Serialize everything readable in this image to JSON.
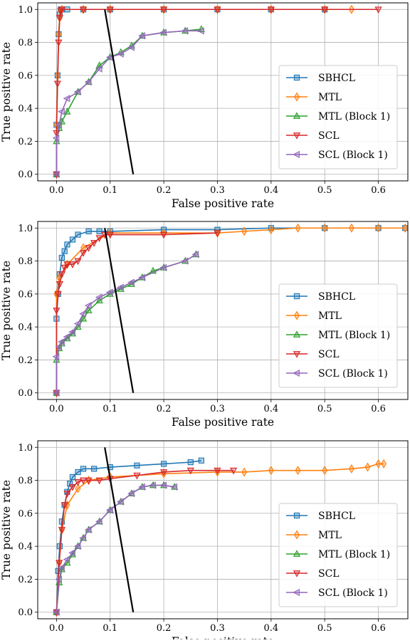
{
  "colors": {
    "sbhcl": "#1f77b4",
    "mtl": "#ff7f0e",
    "mtl_block1": "#2ca02c",
    "scl": "#d62728",
    "scl_block1": "#9467bd",
    "grid": "#b0b0b0",
    "overlay_line": "#000000"
  },
  "chart_data": [
    {
      "type": "line",
      "xlabel": "False positive rate",
      "ylabel": "True positive rate",
      "xlim": [
        -0.035,
        0.655
      ],
      "ylim": [
        -0.04,
        1.04
      ],
      "xticks": [
        "0.0",
        "0.1",
        "0.2",
        "0.3",
        "0.4",
        "0.5",
        "0.6"
      ],
      "yticks": [
        "0.0",
        "0.2",
        "0.4",
        "0.6",
        "0.8",
        "1.0"
      ],
      "grid": true,
      "legend_position": "lower-right",
      "series": [
        {
          "name": "SBHCL",
          "marker": "square",
          "x": [
            0,
            0,
            0.002,
            0.004,
            0.006,
            0.008,
            0.01,
            0.02,
            0.05,
            0.1,
            0.2,
            0.3,
            0.4,
            0.5
          ],
          "y": [
            0,
            0.3,
            0.6,
            0.85,
            0.97,
            1.0,
            1.0,
            1.0,
            1.0,
            1.0,
            1.0,
            1.0,
            1.0,
            1.0
          ]
        },
        {
          "name": "MTL",
          "marker": "diamond",
          "x": [
            0,
            0,
            0.002,
            0.004,
            0.006,
            0.008,
            0.01,
            0.05,
            0.1,
            0.2,
            0.3,
            0.4,
            0.5,
            0.55
          ],
          "y": [
            0,
            0.3,
            0.6,
            0.85,
            0.95,
            0.99,
            1.0,
            1.0,
            1.0,
            1.0,
            1.0,
            1.0,
            1.0,
            1.0
          ]
        },
        {
          "name": "MTL (Block 1)",
          "marker": "triangle-up",
          "x": [
            0,
            0,
            0.005,
            0.01,
            0.02,
            0.04,
            0.06,
            0.08,
            0.1,
            0.12,
            0.14,
            0.16,
            0.2,
            0.24,
            0.27
          ],
          "y": [
            0,
            0.2,
            0.28,
            0.32,
            0.38,
            0.5,
            0.56,
            0.66,
            0.71,
            0.74,
            0.78,
            0.84,
            0.86,
            0.87,
            0.88
          ]
        },
        {
          "name": "SCL",
          "marker": "triangle-down",
          "x": [
            0,
            0,
            0.002,
            0.004,
            0.006,
            0.008,
            0.01,
            0.05,
            0.1,
            0.2,
            0.3,
            0.4,
            0.5,
            0.6
          ],
          "y": [
            0,
            0.25,
            0.55,
            0.8,
            0.95,
            0.99,
            1.0,
            1.0,
            1.0,
            1.0,
            1.0,
            1.0,
            1.0,
            1.0
          ]
        },
        {
          "name": "SCL (Block 1)",
          "marker": "triangle-left",
          "x": [
            0,
            0,
            0.005,
            0.01,
            0.02,
            0.04,
            0.06,
            0.08,
            0.1,
            0.12,
            0.14,
            0.16,
            0.2,
            0.24,
            0.27
          ],
          "y": [
            0,
            0.22,
            0.3,
            0.38,
            0.46,
            0.5,
            0.56,
            0.64,
            0.71,
            0.73,
            0.77,
            0.84,
            0.86,
            0.87,
            0.87
          ]
        }
      ],
      "overlay_line": {
        "x": [
          0.09,
          0.143
        ],
        "y": [
          1.0,
          0.0
        ]
      }
    },
    {
      "type": "line",
      "xlabel": "False positive rate",
      "ylabel": "True positive rate",
      "xlim": [
        -0.035,
        0.655
      ],
      "ylim": [
        -0.04,
        1.04
      ],
      "xticks": [
        "0.0",
        "0.1",
        "0.2",
        "0.3",
        "0.4",
        "0.5",
        "0.6"
      ],
      "yticks": [
        "0.0",
        "0.2",
        "0.4",
        "0.6",
        "0.8",
        "1.0"
      ],
      "grid": true,
      "legend_position": "lower-right",
      "series": [
        {
          "name": "SBHCL",
          "marker": "square",
          "x": [
            0,
            0,
            0.003,
            0.006,
            0.01,
            0.015,
            0.02,
            0.03,
            0.04,
            0.06,
            0.08,
            0.1,
            0.2,
            0.3,
            0.4,
            0.5,
            0.6,
            0.65
          ],
          "y": [
            0,
            0.45,
            0.6,
            0.72,
            0.82,
            0.86,
            0.9,
            0.93,
            0.96,
            0.98,
            0.98,
            0.98,
            0.99,
            0.99,
            1.0,
            1.0,
            1.0,
            1.0
          ]
        },
        {
          "name": "MTL",
          "marker": "diamond",
          "x": [
            0,
            0,
            0.005,
            0.02,
            0.05,
            0.1,
            0.2,
            0.3,
            0.35,
            0.4,
            0.45,
            0.5,
            0.55,
            0.6,
            0.65
          ],
          "y": [
            0,
            0.6,
            0.7,
            0.78,
            0.88,
            0.97,
            0.97,
            0.97,
            0.98,
            0.99,
            1.0,
            1.0,
            1.0,
            1.0,
            1.0
          ]
        },
        {
          "name": "MTL (Block 1)",
          "marker": "triangle-up",
          "x": [
            0,
            0,
            0.005,
            0.01,
            0.02,
            0.03,
            0.04,
            0.05,
            0.06,
            0.08,
            0.1,
            0.12,
            0.14,
            0.16,
            0.18,
            0.2,
            0.24,
            0.26
          ],
          "y": [
            0,
            0.2,
            0.27,
            0.3,
            0.33,
            0.36,
            0.4,
            0.45,
            0.5,
            0.56,
            0.6,
            0.63,
            0.66,
            0.7,
            0.74,
            0.76,
            0.8,
            0.84
          ]
        },
        {
          "name": "SCL",
          "marker": "triangle-down",
          "x": [
            0,
            0,
            0.003,
            0.006,
            0.01,
            0.015,
            0.02,
            0.03,
            0.04,
            0.05,
            0.06,
            0.07,
            0.08,
            0.09,
            0.1,
            0.2,
            0.3
          ],
          "y": [
            0,
            0.5,
            0.6,
            0.66,
            0.72,
            0.76,
            0.78,
            0.78,
            0.8,
            0.85,
            0.88,
            0.91,
            0.94,
            0.96,
            0.96,
            0.96,
            0.97
          ]
        },
        {
          "name": "SCL (Block 1)",
          "marker": "triangle-left",
          "x": [
            0,
            0,
            0.005,
            0.01,
            0.02,
            0.03,
            0.04,
            0.05,
            0.06,
            0.08,
            0.1,
            0.12,
            0.14,
            0.16,
            0.2,
            0.24,
            0.26
          ],
          "y": [
            0,
            0.22,
            0.28,
            0.31,
            0.34,
            0.37,
            0.42,
            0.48,
            0.53,
            0.58,
            0.61,
            0.64,
            0.67,
            0.7,
            0.76,
            0.8,
            0.84
          ]
        }
      ],
      "overlay_line": {
        "x": [
          0.09,
          0.143
        ],
        "y": [
          1.0,
          0.0
        ]
      }
    },
    {
      "type": "line",
      "xlabel": "False positive rate",
      "ylabel": "True positive rate",
      "xlim": [
        -0.035,
        0.655
      ],
      "ylim": [
        -0.04,
        1.04
      ],
      "xticks": [
        "0.0",
        "0.1",
        "0.2",
        "0.3",
        "0.4",
        "0.5",
        "0.6"
      ],
      "yticks": [
        "0.0",
        "0.2",
        "0.4",
        "0.6",
        "0.8",
        "1.0"
      ],
      "grid": true,
      "legend_position": "lower-right",
      "series": [
        {
          "name": "SBHCL",
          "marker": "square",
          "x": [
            0,
            0.003,
            0.006,
            0.01,
            0.015,
            0.02,
            0.025,
            0.03,
            0.04,
            0.05,
            0.07,
            0.1,
            0.15,
            0.2,
            0.25,
            0.27
          ],
          "y": [
            0,
            0.25,
            0.4,
            0.55,
            0.65,
            0.73,
            0.78,
            0.82,
            0.85,
            0.87,
            0.87,
            0.88,
            0.89,
            0.9,
            0.91,
            0.92
          ]
        },
        {
          "name": "MTL",
          "marker": "diamond",
          "x": [
            0,
            0.005,
            0.01,
            0.02,
            0.04,
            0.06,
            0.1,
            0.2,
            0.3,
            0.35,
            0.4,
            0.45,
            0.5,
            0.55,
            0.58,
            0.6,
            0.61
          ],
          "y": [
            0,
            0.3,
            0.5,
            0.65,
            0.75,
            0.8,
            0.82,
            0.84,
            0.85,
            0.85,
            0.86,
            0.86,
            0.86,
            0.87,
            0.88,
            0.9,
            0.9
          ]
        },
        {
          "name": "MTL (Block 1)",
          "marker": "triangle-up",
          "x": [
            0,
            0.005,
            0.01,
            0.02,
            0.03,
            0.04,
            0.05,
            0.06,
            0.08,
            0.1,
            0.12,
            0.14,
            0.16,
            0.18,
            0.2,
            0.22
          ],
          "y": [
            0,
            0.18,
            0.26,
            0.3,
            0.35,
            0.4,
            0.45,
            0.5,
            0.55,
            0.62,
            0.67,
            0.72,
            0.76,
            0.77,
            0.77,
            0.76
          ]
        },
        {
          "name": "SCL",
          "marker": "triangle-down",
          "x": [
            0,
            0.005,
            0.01,
            0.015,
            0.02,
            0.03,
            0.04,
            0.05,
            0.06,
            0.08,
            0.1,
            0.15,
            0.2,
            0.25,
            0.3,
            0.33
          ],
          "y": [
            0,
            0.3,
            0.5,
            0.65,
            0.72,
            0.76,
            0.79,
            0.8,
            0.8,
            0.8,
            0.81,
            0.83,
            0.85,
            0.86,
            0.86,
            0.86
          ]
        },
        {
          "name": "SCL (Block 1)",
          "marker": "triangle-left",
          "x": [
            0,
            0.005,
            0.01,
            0.02,
            0.03,
            0.04,
            0.05,
            0.06,
            0.08,
            0.1,
            0.12,
            0.14,
            0.16,
            0.18,
            0.2,
            0.22
          ],
          "y": [
            0,
            0.2,
            0.27,
            0.32,
            0.36,
            0.4,
            0.45,
            0.5,
            0.55,
            0.62,
            0.67,
            0.72,
            0.76,
            0.77,
            0.77,
            0.76
          ]
        }
      ],
      "overlay_line": {
        "x": [
          0.09,
          0.143
        ],
        "y": [
          1.0,
          0.0
        ]
      }
    }
  ]
}
